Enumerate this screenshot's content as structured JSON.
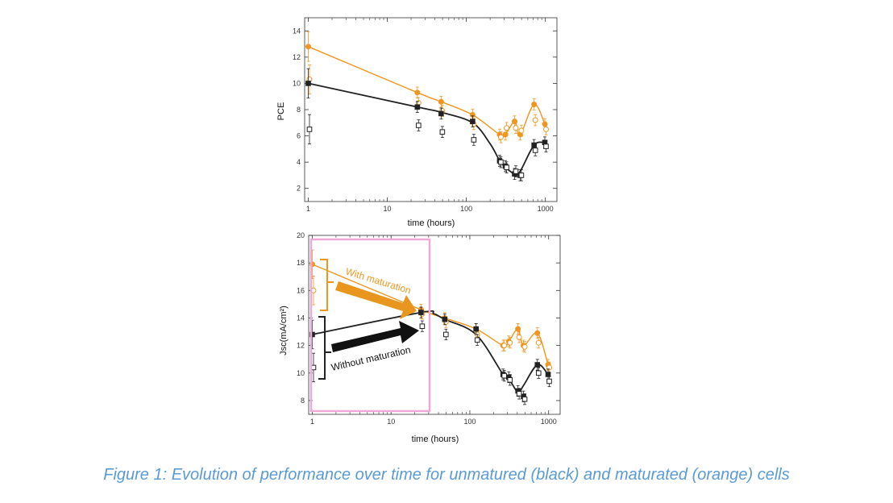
{
  "caption": "Figure 1: Evolution of performance over time for unmatured (black) and maturated (orange) cells",
  "colors": {
    "orange": "#f0961e",
    "black": "#222222",
    "box": "#f0a8d8",
    "caption": "#5b9bd5"
  },
  "chart_data": [
    {
      "type": "scatter",
      "xlabel": "time (hours)",
      "ylabel": "PCE",
      "xscale": "log",
      "xlim": [
        0.9,
        1400
      ],
      "ylim": [
        1,
        15
      ],
      "xticks": [
        1,
        10,
        100,
        1000
      ],
      "yticks": [
        2,
        4,
        6,
        8,
        10,
        12,
        14
      ],
      "series": [
        {
          "color": "orange",
          "marker": "filled-circle",
          "x": [
            1,
            24,
            48,
            120,
            264,
            312,
            408,
            480,
            720,
            984
          ],
          "y": [
            12.8,
            9.3,
            8.6,
            7.6,
            6.1,
            6.1,
            7.1,
            6.1,
            8.4,
            6.9
          ]
        },
        {
          "color": "orange",
          "marker": "open-circle",
          "x": [
            1,
            24,
            48,
            120,
            264,
            312,
            408,
            480,
            720,
            984
          ],
          "y": [
            10.3,
            8.5,
            7.9,
            6.9,
            5.9,
            6.6,
            6.6,
            6.4,
            7.2,
            6.5
          ]
        },
        {
          "color": "black",
          "marker": "filled-square",
          "x": [
            1,
            24,
            48,
            120,
            264,
            312,
            408,
            480,
            720,
            984
          ],
          "y": [
            10.0,
            8.2,
            7.7,
            7.1,
            4.1,
            3.7,
            3.1,
            3.0,
            5.3,
            5.5
          ]
        },
        {
          "color": "black",
          "marker": "open-square",
          "x": [
            1,
            24,
            48,
            120,
            264,
            312,
            408,
            480,
            720,
            984
          ],
          "y": [
            6.5,
            6.8,
            6.3,
            5.7,
            4.0,
            3.6,
            3.3,
            3.0,
            4.9,
            5.2
          ]
        }
      ],
      "fits": [
        {
          "color": "orange",
          "x": [
            1,
            24,
            48,
            120,
            264,
            312,
            408,
            480,
            720,
            984
          ],
          "y": [
            12.8,
            9.3,
            8.6,
            7.6,
            6.1,
            6.1,
            7.1,
            6.1,
            8.4,
            6.9
          ]
        },
        {
          "color": "black",
          "x": [
            1,
            24,
            48,
            120,
            200,
            264,
            312,
            408,
            480,
            720,
            984
          ],
          "y": [
            10.0,
            8.2,
            7.8,
            7.0,
            5.4,
            4.1,
            3.6,
            3.1,
            3.3,
            5.3,
            5.5
          ]
        }
      ]
    },
    {
      "type": "scatter",
      "xlabel": "time (hours)",
      "ylabel": "Jsc(mA/cm²)",
      "xscale": "log",
      "xlim": [
        0.9,
        1400
      ],
      "ylim": [
        7,
        20
      ],
      "xticks": [
        1,
        10,
        100,
        1000
      ],
      "yticks": [
        8,
        10,
        12,
        14,
        16,
        18,
        20
      ],
      "series": [
        {
          "color": "orange",
          "marker": "filled-circle",
          "x": [
            1,
            24,
            48,
            120,
            264,
            312,
            408,
            480,
            720,
            984
          ],
          "y": [
            17.9,
            14.6,
            14.0,
            13.2,
            12.0,
            12.3,
            13.2,
            12.0,
            12.9,
            10.6
          ]
        },
        {
          "color": "orange",
          "marker": "open-circle",
          "x": [
            1,
            24,
            48,
            120,
            264,
            312,
            408,
            480,
            720,
            984
          ],
          "y": [
            16.0,
            14.3,
            13.7,
            12.8,
            12.0,
            12.2,
            12.6,
            11.9,
            12.2,
            10.4
          ]
        },
        {
          "color": "black",
          "marker": "filled-square",
          "x": [
            1,
            24,
            48,
            120,
            264,
            312,
            408,
            480,
            720,
            984
          ],
          "y": [
            12.8,
            14.4,
            13.9,
            13.2,
            9.9,
            9.7,
            8.7,
            8.3,
            10.6,
            9.9
          ]
        },
        {
          "color": "black",
          "marker": "open-square",
          "x": [
            1,
            24,
            48,
            120,
            264,
            312,
            408,
            480,
            720,
            984
          ],
          "y": [
            10.4,
            13.4,
            12.8,
            12.4,
            9.8,
            9.5,
            8.5,
            8.1,
            10.0,
            9.4
          ]
        }
      ],
      "fits": [
        {
          "color": "orange",
          "x": [
            1,
            24,
            48,
            120,
            264,
            312,
            408,
            480,
            720,
            984
          ],
          "y": [
            17.9,
            14.6,
            14.0,
            13.2,
            12.0,
            12.3,
            13.2,
            12.0,
            12.9,
            10.6
          ]
        },
        {
          "color": "black",
          "x": [
            1,
            24,
            35,
            48,
            120,
            264,
            312,
            408,
            480,
            720,
            984
          ],
          "y": [
            12.8,
            14.4,
            14.3,
            13.9,
            12.8,
            9.9,
            9.6,
            8.6,
            9.1,
            10.6,
            9.9
          ]
        }
      ],
      "annotations": {
        "with": "With maturation",
        "without": "Without maturation"
      }
    }
  ]
}
